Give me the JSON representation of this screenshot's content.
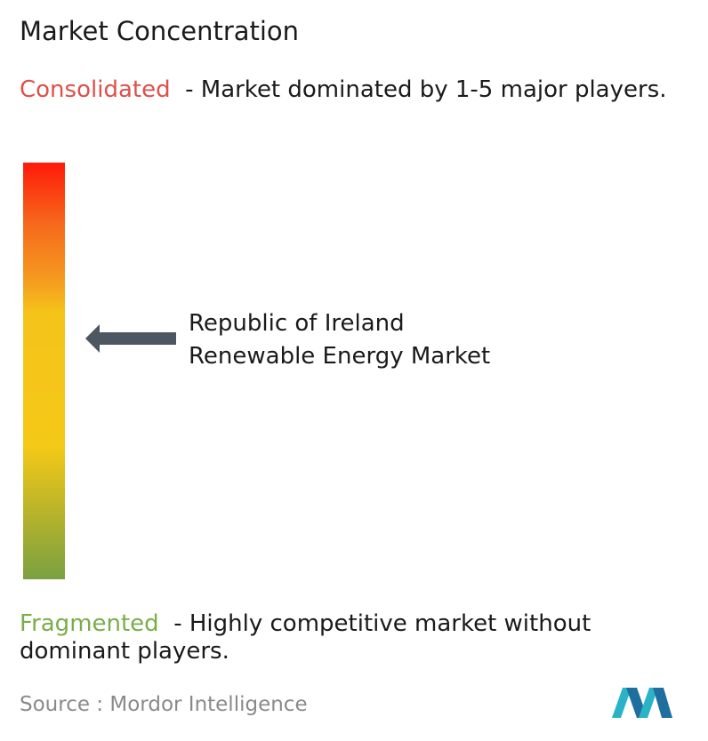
{
  "title": "Market Concentration",
  "consolidated": {
    "label": "Consolidated",
    "description": "- Market dominated by 1-5 major players."
  },
  "marker": {
    "lines": [
      "Republic of Ireland",
      "Renewable Energy Market"
    ]
  },
  "fragmented": {
    "label": "Fragmented",
    "description": "- Highly competitive market without dominant players."
  },
  "source": {
    "label": "Source :",
    "name": "Mordor Intelligence"
  }
}
